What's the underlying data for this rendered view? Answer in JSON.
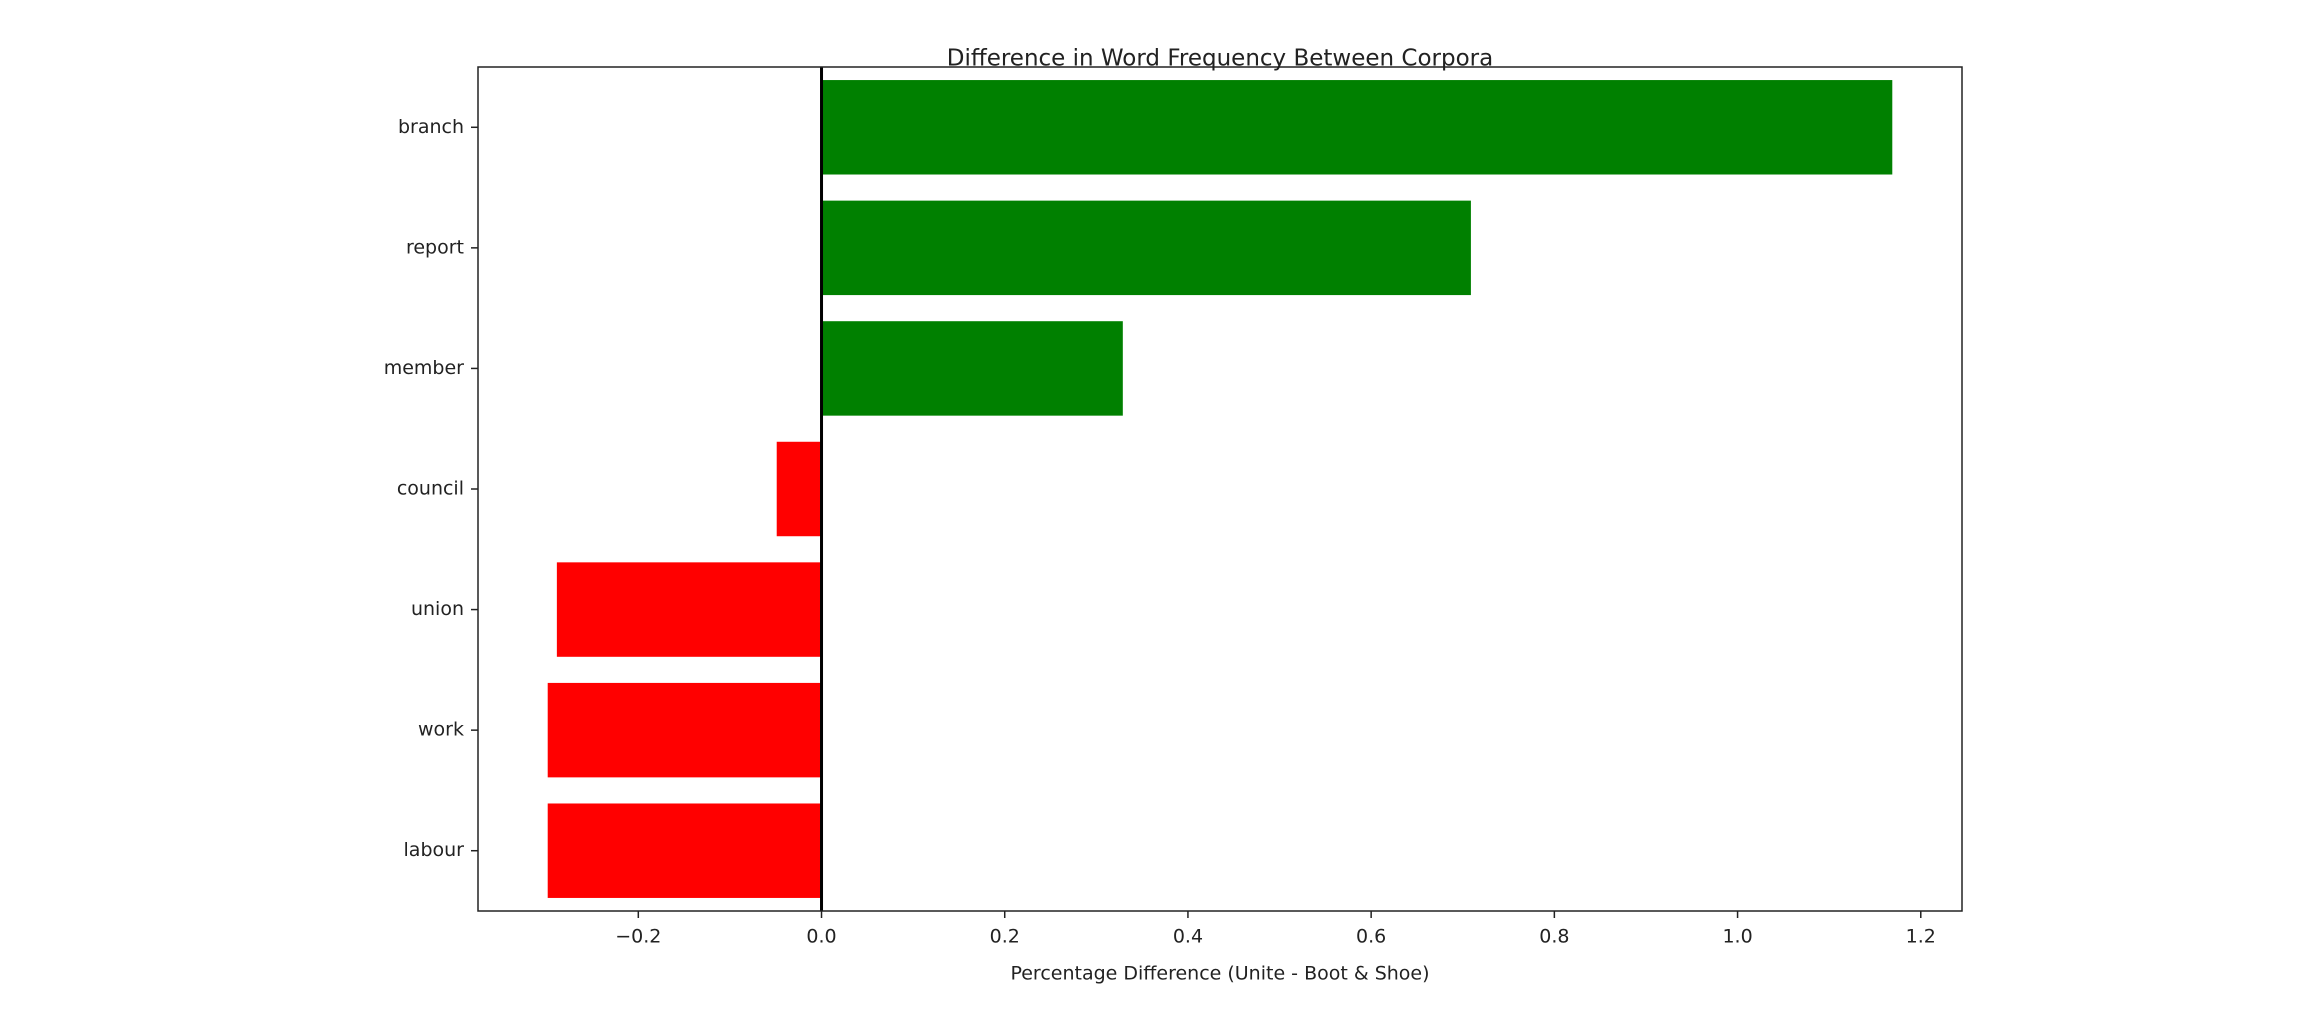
{
  "chart_data": {
    "type": "barh",
    "title": "Difference in Word Frequency Between Corpora",
    "xlabel": "Percentage Difference (Unite - Boot & Shoe)",
    "categories": [
      "branch",
      "report",
      "member",
      "council",
      "union",
      "work",
      "labour"
    ],
    "values": [
      1.17,
      0.71,
      0.33,
      -0.05,
      -0.29,
      -0.3,
      -0.3
    ],
    "colors": [
      "#008000",
      "#008000",
      "#008000",
      "#ff0000",
      "#ff0000",
      "#ff0000",
      "#ff0000"
    ],
    "xlim": [
      -0.375,
      1.245
    ],
    "xticks": [
      {
        "value": -0.2,
        "label": "−0.2"
      },
      {
        "value": 0,
        "label": "0.0"
      },
      0.2,
      0.4,
      0.6,
      0.8,
      {
        "value": 1,
        "label": "1.0"
      },
      1.2
    ],
    "zero_line": true
  }
}
